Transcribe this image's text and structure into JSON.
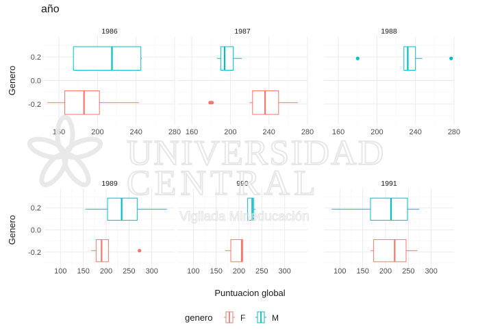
{
  "title": "año",
  "colors": {
    "F": "#F8766D",
    "M": "#00BFC4",
    "grid_major": "#ebebeb",
    "grid_minor": "#f5f5f5",
    "watermark": "#e9e9e9"
  },
  "watermark": {
    "line1": "UNIVERSIDAD",
    "line2": "CENTRAL",
    "line3": "Vigilada Mineducación"
  },
  "chart_data": {
    "type": "boxplot",
    "xlabel": "Puntuacion global",
    "ylabel": "Genero",
    "legend": {
      "title": "genero",
      "position": "bottom",
      "entries": [
        "F",
        "M"
      ]
    },
    "rows": [
      {
        "y_ticks": [
          0.2,
          0.0,
          -0.2
        ],
        "y_tick_labels": [
          "0.2",
          "0.0",
          "-0.2"
        ],
        "ylim": [
          -0.375,
          0.375
        ],
        "x_ticks": [
          160,
          200,
          240,
          280
        ],
        "x_tick_labels": [
          "160",
          "200",
          "240",
          "280"
        ],
        "xlim": [
          145,
          280
        ],
        "panels": [
          {
            "label": "1986",
            "boxes": [
              {
                "genero": "M",
                "y": 0.1875,
                "whisker_low": 175,
                "q1": 175,
                "median": 215,
                "q3": 245,
                "whisker_high": 246,
                "outliers": []
              },
              {
                "genero": "F",
                "y": -0.1875,
                "whisker_low": 148,
                "q1": 166,
                "median": 186,
                "q3": 202,
                "whisker_high": 243,
                "outliers": []
              }
            ]
          },
          {
            "label": "1987",
            "boxes": [
              {
                "genero": "M",
                "y": 0.1875,
                "whisker_low": 186,
                "q1": 190,
                "median": 194,
                "q3": 203,
                "whisker_high": 212,
                "outliers": []
              },
              {
                "genero": "F",
                "y": -0.1875,
                "whisker_low": 220,
                "q1": 223,
                "median": 236,
                "q3": 250,
                "whisker_high": 270,
                "outliers": [
                  179,
                  181
                ]
              }
            ]
          },
          {
            "label": "1988",
            "boxes": [
              {
                "genero": "M",
                "y": 0.1875,
                "whisker_low": 228,
                "q1": 228,
                "median": 232,
                "q3": 240,
                "whisker_high": 247,
                "outliers": [
                  180,
                  277
                ]
              }
            ]
          }
        ]
      },
      {
        "y_ticks": [
          0.2,
          0.0,
          -0.2
        ],
        "y_tick_labels": [
          "0.2",
          "0.0",
          "-0.2"
        ],
        "ylim": [
          -0.375,
          0.375
        ],
        "x_ticks": [
          100,
          150,
          200,
          250,
          300
        ],
        "x_tick_labels": [
          "100",
          "150",
          "200",
          "250",
          "300"
        ],
        "xlim": [
          65,
          350
        ],
        "panels": [
          {
            "label": "1989",
            "boxes": [
              {
                "genero": "M",
                "y": 0.1875,
                "whisker_low": 155,
                "q1": 203,
                "median": 234,
                "q3": 268,
                "whisker_high": 333,
                "outliers": []
              },
              {
                "genero": "F",
                "y": -0.1875,
                "whisker_low": 167,
                "q1": 178,
                "median": 190,
                "q3": 205,
                "whisker_high": 205,
                "outliers": [
                  273
                ]
              }
            ]
          },
          {
            "label": "990",
            "boxes": [
              {
                "genero": "M",
                "y": 0.1875,
                "whisker_low": 219,
                "q1": 219,
                "median": 229,
                "q3": 232,
                "whisker_high": 236,
                "outliers": []
              },
              {
                "genero": "F",
                "y": -0.1875,
                "whisker_low": 170,
                "q1": 182,
                "median": 206,
                "q3": 208,
                "whisker_high": 208,
                "outliers": []
              }
            ]
          },
          {
            "label": "1991",
            "boxes": [
              {
                "genero": "M",
                "y": 0.1875,
                "whisker_low": 82,
                "q1": 167,
                "median": 212,
                "q3": 248,
                "whisker_high": 274,
                "outliers": []
              },
              {
                "genero": "F",
                "y": -0.1875,
                "whisker_low": 167,
                "q1": 174,
                "median": 220,
                "q3": 245,
                "whisker_high": 270,
                "outliers": []
              }
            ]
          }
        ]
      }
    ]
  }
}
